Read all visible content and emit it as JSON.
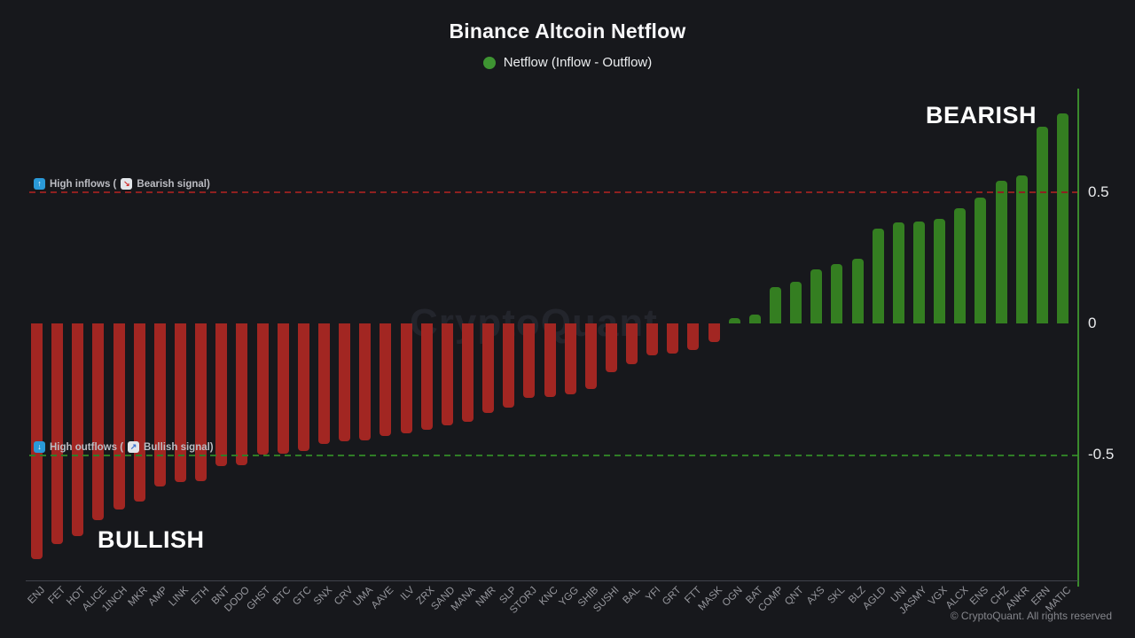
{
  "title": "Binance Altcoin Netflow",
  "legend": {
    "label": "Netflow (Inflow - Outflow)",
    "dot_color": "#3e9432"
  },
  "annotations": {
    "upper": {
      "prefix": "High inflows (",
      "suffix": "Bearish signal)"
    },
    "lower": {
      "prefix": "High outflows (",
      "suffix": "Bullish signal)"
    },
    "bearish_region": "BEARISH",
    "bullish_region": "BULLISH"
  },
  "watermark": "CryptoQuant",
  "copyright": "© CryptoQuant. All rights reserved",
  "y_axis": {
    "tick_labels": [
      "0.5",
      "0",
      "-0.5"
    ],
    "tick_values": [
      0.5,
      0,
      -0.5
    ]
  },
  "chart_data": {
    "type": "bar",
    "title": "Binance Altcoin Netflow",
    "legend": "Netflow (Inflow - Outflow)",
    "legend_position": "top",
    "grid": false,
    "categories": [
      "ENJ",
      "FET",
      "HOT",
      "ALICE",
      "1INCH",
      "MKR",
      "AMP",
      "LINK",
      "ETH",
      "BNT",
      "DODO",
      "GHST",
      "BTC",
      "GTC",
      "SNX",
      "CRV",
      "UMA",
      "AAVE",
      "ILV",
      "ZRX",
      "SAND",
      "MANA",
      "NMR",
      "SLP",
      "STORJ",
      "KNC",
      "YGG",
      "SHIB",
      "SUSHI",
      "BAL",
      "YFI",
      "GRT",
      "FTT",
      "MASK",
      "OGN",
      "BAT",
      "COMP",
      "QNT",
      "AXS",
      "SKL",
      "BLZ",
      "AGLD",
      "UNI",
      "JASMY",
      "VGX",
      "ALCX",
      "ENS",
      "CHZ",
      "ANKR",
      "ERN",
      "MATIC"
    ],
    "values": [
      -0.9,
      -0.84,
      -0.81,
      -0.75,
      -0.71,
      -0.68,
      -0.62,
      -0.605,
      -0.6,
      -0.545,
      -0.54,
      -0.5,
      -0.495,
      -0.485,
      -0.46,
      -0.45,
      -0.445,
      -0.43,
      -0.42,
      -0.405,
      -0.39,
      -0.375,
      -0.34,
      -0.32,
      -0.285,
      -0.28,
      -0.27,
      -0.25,
      -0.185,
      -0.155,
      -0.12,
      -0.115,
      -0.1,
      -0.07,
      0.02,
      0.035,
      0.14,
      0.16,
      0.205,
      0.225,
      0.245,
      0.36,
      0.385,
      0.39,
      0.4,
      0.44,
      0.48,
      0.545,
      0.565,
      0.75,
      0.8
    ],
    "xlabel": "",
    "ylabel": "",
    "ylim": [
      -1.0,
      0.85
    ],
    "yticks": [
      0.5,
      0,
      -0.5
    ],
    "positive_color": "#347e21",
    "negative_color": "#a22622",
    "thresholds": [
      {
        "level": 0.5,
        "style": "dashed",
        "color": "#8f2020",
        "meaning": "High inflows (Bearish signal)"
      },
      {
        "level": -0.5,
        "style": "dashed",
        "color": "#2f7d26",
        "meaning": "High outflows (Bullish signal)"
      }
    ]
  }
}
